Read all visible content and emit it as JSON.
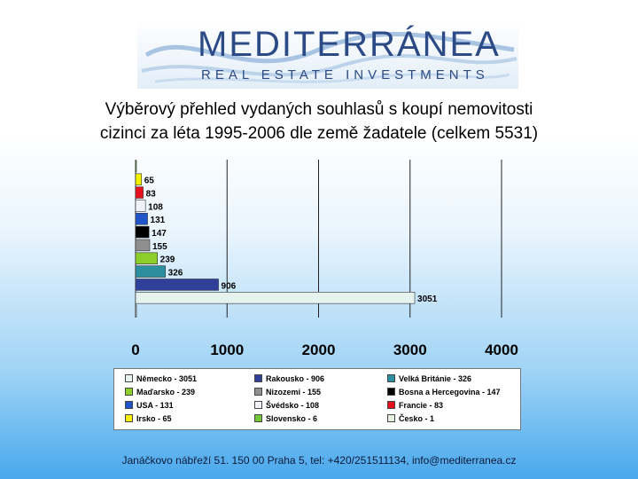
{
  "logo": {
    "brand": "MEDITERRÁNEA",
    "tagline": "REAL ESTATE INVESTMENTS"
  },
  "title": {
    "line1": "Výběrový přehled vydaných souhlasů s koupí nemovitosti",
    "line2": "cizinci za léta 1995-2006 dle země žadatele (celkem 5531)"
  },
  "chart_data": {
    "type": "bar",
    "orientation": "horizontal",
    "xlim": [
      0,
      4000
    ],
    "xticks": [
      "0",
      "1000",
      "2000",
      "3000",
      "4000"
    ],
    "grid": true,
    "legend_position": "bottom",
    "series": [
      {
        "name": "Česko - 1",
        "value": 1,
        "label": "",
        "color": "#e4f0e0"
      },
      {
        "name": "Německo - 3051",
        "value": 3051,
        "label": "3051",
        "color": "#e6f2ee"
      },
      {
        "name": "Rakousko - 906",
        "value": 906,
        "label": "906",
        "color": "#2f3f9a"
      },
      {
        "name": "Velká Británie - 326",
        "value": 326,
        "label": "326",
        "color": "#2b8fa0"
      },
      {
        "name": "Maďarsko - 239",
        "value": 239,
        "label": "239",
        "color": "#8ccf2a"
      },
      {
        "name": "Nizozemí - 155",
        "value": 155,
        "label": "155",
        "color": "#8f8f8f"
      },
      {
        "name": "Bosna a Hercegovina - 147",
        "value": 147,
        "label": "147",
        "color": "#000000"
      },
      {
        "name": "USA - 131",
        "value": 131,
        "label": "131",
        "color": "#1f55c8"
      },
      {
        "name": "Švédsko - 108",
        "value": 108,
        "label": "108",
        "color": "#f2f2fc"
      },
      {
        "name": "Francie - 83",
        "value": 83,
        "label": "83",
        "color": "#e8101c"
      },
      {
        "name": "Irsko - 65",
        "value": 65,
        "label": "65",
        "color": "#f4f000"
      },
      {
        "name": "Slovensko - 6",
        "value": 6,
        "label": "",
        "color": "#74c83a"
      }
    ],
    "bar_order_bottom_to_top": [
      "Česko - 1",
      "Německo - 3051",
      "Rakousko - 906",
      "Velká Británie - 326",
      "Maďarsko - 239",
      "Nizozemí - 155",
      "Bosna a Hercegovina - 147",
      "USA - 131",
      "Švédsko - 108",
      "Francie - 83",
      "Irsko - 65",
      "Slovensko - 6"
    ],
    "legend_order": [
      "Německo - 3051",
      "Rakousko - 906",
      "Velká Británie - 326",
      "Maďarsko - 239",
      "Nizozemí - 155",
      "Bosna a Hercegovina - 147",
      "USA - 131",
      "Švédsko - 108",
      "Francie - 83",
      "Irsko - 65",
      "Slovensko - 6",
      "Česko - 1"
    ]
  },
  "footer": "Janáčkovo nábřeží 51. 150 00 Praha 5, tel: +420/251511134, info@mediterranea.cz"
}
